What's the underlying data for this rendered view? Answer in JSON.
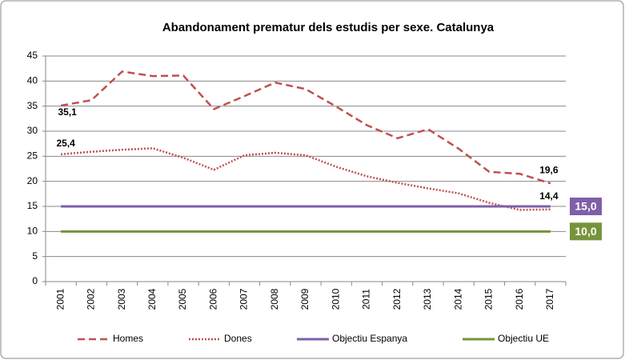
{
  "chart_data": {
    "type": "line",
    "title": "Abandonament prematur dels estudis per sexe. Catalunya",
    "categories": [
      "2001",
      "2002",
      "2003",
      "2004",
      "2005",
      "2006",
      "2007",
      "2008",
      "2009",
      "2010",
      "2011",
      "2012",
      "2013",
      "2014",
      "2015",
      "2016",
      "2017"
    ],
    "ylim": [
      0,
      45
    ],
    "yticks": [
      0,
      5,
      10,
      15,
      20,
      25,
      30,
      35,
      40,
      45
    ],
    "grid": true,
    "legend": "bottom",
    "series": [
      {
        "name": "Homes",
        "color": "#c0504d",
        "dash": "dashed",
        "values": [
          35.1,
          36.2,
          41.9,
          41.0,
          41.1,
          34.4,
          37.0,
          39.7,
          38.4,
          34.9,
          31.2,
          28.6,
          30.4,
          26.5,
          21.9,
          21.5,
          19.6
        ],
        "value_labels": [
          "35,1",
          null,
          null,
          null,
          null,
          null,
          null,
          null,
          null,
          null,
          null,
          null,
          null,
          null,
          null,
          null,
          "19,6"
        ]
      },
      {
        "name": "Dones",
        "color": "#c0504d",
        "dash": "dotted",
        "values": [
          25.4,
          25.9,
          26.3,
          26.6,
          24.7,
          22.3,
          25.2,
          25.7,
          25.2,
          22.9,
          21.0,
          19.7,
          18.6,
          17.6,
          15.7,
          14.3,
          14.4
        ],
        "value_labels": [
          "25,4",
          null,
          null,
          null,
          null,
          null,
          null,
          null,
          null,
          null,
          null,
          null,
          null,
          null,
          null,
          null,
          "14,4"
        ]
      },
      {
        "name": "Objectiu Espanya",
        "color": "#7f5fa8",
        "dash": "solid",
        "values": [
          15,
          15,
          15,
          15,
          15,
          15,
          15,
          15,
          15,
          15,
          15,
          15,
          15,
          15,
          15,
          15,
          15
        ],
        "value_labels": [
          null,
          null,
          null,
          null,
          null,
          null,
          null,
          null,
          null,
          null,
          null,
          null,
          null,
          null,
          null,
          null,
          "15,0"
        ]
      },
      {
        "name": "Objectiu UE",
        "color": "#77933c",
        "dash": "solid",
        "values": [
          10,
          10,
          10,
          10,
          10,
          10,
          10,
          10,
          10,
          10,
          10,
          10,
          10,
          10,
          10,
          10,
          10
        ],
        "value_labels": [
          null,
          null,
          null,
          null,
          null,
          null,
          null,
          null,
          null,
          null,
          null,
          null,
          null,
          null,
          null,
          null,
          "10,0"
        ]
      }
    ]
  }
}
